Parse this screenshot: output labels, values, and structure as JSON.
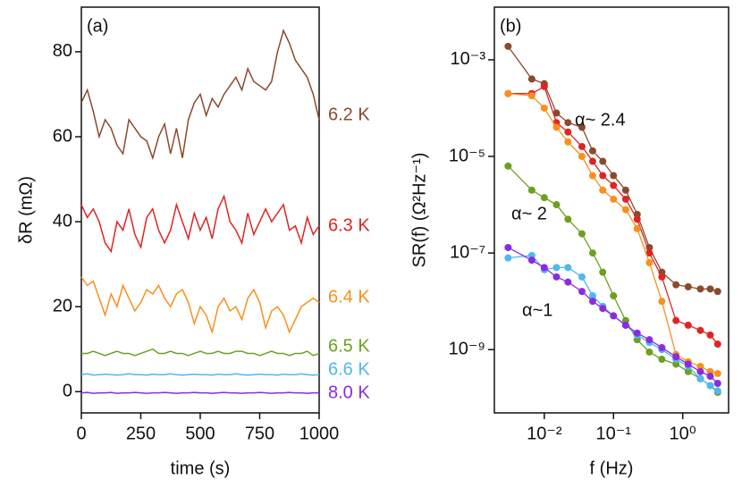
{
  "chart_data": [
    {
      "type": "line",
      "panel_label": "(a)",
      "xlabel": "time (s)",
      "ylabel": "δR (mΩ)",
      "x": [
        0,
        25,
        50,
        75,
        100,
        125,
        150,
        175,
        200,
        225,
        250,
        275,
        300,
        325,
        350,
        375,
        400,
        425,
        450,
        475,
        500,
        525,
        550,
        575,
        600,
        625,
        650,
        675,
        700,
        725,
        750,
        775,
        800,
        825,
        850,
        875,
        900,
        925,
        950,
        975,
        1000
      ],
      "xlim": [
        0,
        1000
      ],
      "ylim": [
        -5,
        90.5
      ],
      "xticks": [
        0,
        250,
        500,
        750,
        1000
      ],
      "yticks": [
        0,
        20,
        40,
        60,
        80
      ],
      "xscale": "linear",
      "yscale": "linear",
      "markers": false,
      "series": [
        {
          "name": "6.2 K",
          "color": "#8b4a2b",
          "values": [
            68,
            71,
            66,
            60,
            64,
            62,
            58,
            56,
            64,
            62,
            60,
            59,
            55,
            60,
            63,
            56,
            62,
            55,
            64,
            68,
            70,
            65,
            69,
            67,
            70,
            72,
            74,
            71,
            76,
            73,
            72,
            71,
            73,
            80,
            85,
            82,
            78,
            76,
            74,
            70,
            64
          ]
        },
        {
          "name": "6.3 K",
          "color": "#e02424",
          "values": [
            44,
            41,
            43,
            40,
            35,
            33,
            40,
            38,
            43,
            37,
            34,
            41,
            43,
            38,
            35,
            38,
            44,
            40,
            36,
            42,
            38,
            41,
            36,
            43,
            46,
            40,
            38,
            35,
            42,
            37,
            40,
            43,
            40,
            42,
            44,
            38,
            39,
            35,
            41,
            37,
            39
          ]
        },
        {
          "name": "6.4 K",
          "color": "#f7901e",
          "values": [
            27,
            25,
            26,
            22,
            18,
            23,
            20,
            25,
            22,
            19,
            21,
            24,
            23,
            25,
            22,
            20,
            23,
            24,
            21,
            16,
            20,
            18,
            14,
            20,
            22,
            19,
            20,
            17,
            22,
            24,
            21,
            15,
            19,
            20,
            18,
            14,
            17,
            20,
            21,
            22,
            21
          ]
        },
        {
          "name": "6.5 K",
          "color": "#6aa121",
          "values": [
            9,
            9,
            9.5,
            9,
            8.5,
            9,
            9.5,
            9,
            9,
            8.5,
            9,
            9.5,
            10,
            9,
            9,
            9.5,
            9,
            9,
            8.5,
            9,
            9.5,
            9,
            9,
            9.5,
            9,
            9,
            9.5,
            9.5,
            9,
            9,
            8.5,
            9,
            9.5,
            9,
            9,
            8.5,
            9,
            9,
            9.5,
            8.5,
            9
          ]
        },
        {
          "name": "6.6 K",
          "color": "#4fb8f0",
          "values": [
            4,
            4.2,
            3.9,
            4,
            4.1,
            4,
            3.9,
            4,
            4.2,
            4,
            4,
            3.9,
            4.1,
            4,
            4,
            4.2,
            4,
            3.9,
            4,
            4.1,
            4,
            4,
            3.9,
            4.1,
            4,
            4,
            4.2,
            4,
            3.9,
            4,
            4.1,
            4,
            4,
            3.9,
            4.1,
            4,
            4,
            4.2,
            4,
            3.9,
            4
          ]
        },
        {
          "name": "8.0 K",
          "color": "#8a2be2",
          "values": [
            -0.3,
            -0.2,
            -0.4,
            -0.3,
            -0.3,
            -0.2,
            -0.4,
            -0.3,
            -0.3,
            -0.2,
            -0.3,
            -0.4,
            -0.3,
            -0.3,
            -0.2,
            -0.3,
            -0.4,
            -0.3,
            -0.3,
            -0.2,
            -0.3,
            -0.3,
            -0.4,
            -0.3,
            -0.2,
            -0.3,
            -0.3,
            -0.4,
            -0.3,
            -0.3,
            -0.2,
            -0.3,
            -0.4,
            -0.3,
            -0.3,
            -0.2,
            -0.3,
            -0.3,
            -0.4,
            -0.3,
            -0.3
          ]
        }
      ]
    },
    {
      "type": "line",
      "panel_label": "(b)",
      "xlabel": "f (Hz)",
      "ylabel": "SR(f) (Ω²Hz⁻¹)",
      "x": [
        0.003,
        0.0066,
        0.01,
        0.015,
        0.022,
        0.035,
        0.05,
        0.07,
        0.1,
        0.15,
        0.22,
        0.33,
        0.5,
        0.8,
        1.2,
        1.8,
        2.5,
        3.2
      ],
      "xlim": [
        0.0019,
        4.6
      ],
      "ylim": [
        4.9e-11,
        0.0123
      ],
      "xticks": [
        {
          "value": 0.01,
          "label": "10⁻²"
        },
        {
          "value": 0.1,
          "label": "10⁻¹"
        },
        {
          "value": 1,
          "label": "10⁰"
        }
      ],
      "yticks": [
        {
          "value": 1e-09,
          "label": "10⁻⁹"
        },
        {
          "value": 1e-07,
          "label": "10⁻⁷"
        },
        {
          "value": 1e-05,
          "label": "10⁻⁵"
        },
        {
          "value": 0.001,
          "label": "10⁻³"
        }
      ],
      "xscale": "log",
      "yscale": "log",
      "markers": true,
      "annotations": [
        "α~ 2.4",
        "α~ 2",
        "α~1"
      ],
      "series": [
        {
          "color": "#8b4a2b",
          "values": [
            0.0019,
            0.0004,
            0.00032,
            7.9e-05,
            5e-05,
            4e-05,
            1.3e-05,
            7.9e-06,
            4e-06,
            2e-06,
            6.3e-07,
            1.3e-07,
            4e-08,
            2.2e-08,
            2e-08,
            1.8e-08,
            1.8e-08,
            1.6e-08
          ]
        },
        {
          "color": "#e02424",
          "values": [
            0.0002,
            0.0002,
            0.00028,
            5e-05,
            3.2e-05,
            1.6e-05,
            7.9e-06,
            4e-06,
            2.5e-06,
            1.3e-06,
            5e-07,
            1e-07,
            3.2e-08,
            4e-09,
            3.2e-09,
            2.5e-09,
            2e-09,
            1.3e-09
          ]
        },
        {
          "color": "#f7901e",
          "values": [
            0.0002,
            0.00018,
            0.0001,
            4e-05,
            2e-05,
            1e-05,
            4e-06,
            2e-06,
            1.3e-06,
            7.9e-07,
            3.2e-07,
            6.3e-08,
            1e-08,
            7.9e-10,
            5.6e-10,
            4.5e-10,
            3.5e-10,
            3.2e-10
          ]
        },
        {
          "color": "#6aa121",
          "values": [
            6.3e-06,
            2e-06,
            1.4e-06,
            1e-06,
            5e-07,
            2.5e-07,
            1e-07,
            4e-08,
            1.3e-08,
            4e-09,
            1.6e-09,
            8.9e-10,
            6.3e-10,
            5e-10,
            3.5e-10,
            2.5e-10,
            1.8e-10,
            1.3e-10
          ]
        },
        {
          "color": "#4fb8f0",
          "values": [
            7.9e-08,
            8.9e-08,
            4.5e-08,
            5e-08,
            5e-08,
            3.2e-08,
            1.3e-08,
            7.9e-09,
            5e-09,
            3.2e-09,
            2e-09,
            1.4e-09,
            1e-09,
            6.3e-10,
            4.5e-10,
            2.5e-10,
            1.8e-10,
            1.4e-10
          ]
        },
        {
          "color": "#8a2be2",
          "values": [
            1.3e-07,
            7.1e-08,
            5e-08,
            3.2e-08,
            2.5e-08,
            1.6e-08,
            1e-08,
            7.1e-09,
            5e-09,
            3.2e-09,
            2.2e-09,
            1.6e-09,
            1.1e-09,
            7.1e-10,
            5e-10,
            3.5e-10,
            2.8e-10,
            2e-10
          ]
        }
      ]
    }
  ]
}
